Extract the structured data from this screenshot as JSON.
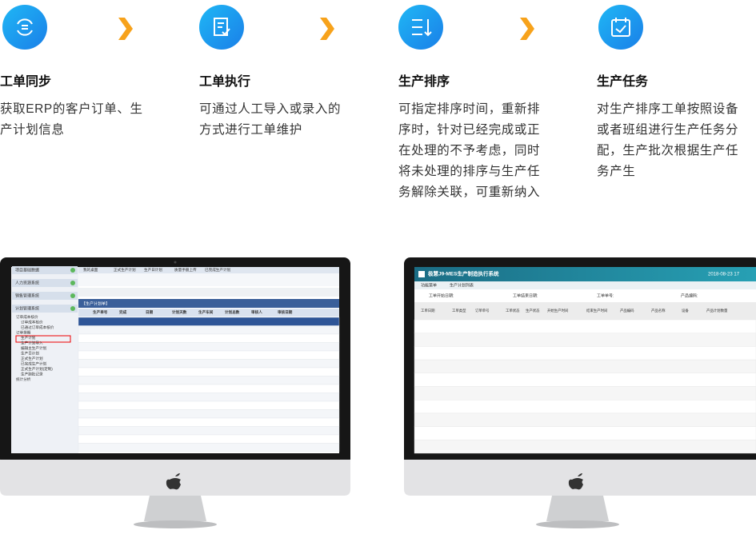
{
  "steps": [
    {
      "title": "工单同步",
      "lines": [
        "获取ERP的客户订单、生",
        "产计划信息"
      ]
    },
    {
      "title": "工单执行",
      "lines": [
        "可通过人工导入或录入的",
        "方式进行工单维护"
      ]
    },
    {
      "title": "生产排序",
      "lines": [
        "可指定排序时间，重新排",
        "序时，针对已经完成或正",
        "在处理的不予考虑，同时",
        "将未处理的排序与生产任",
        "务解除关联，可重新纳入"
      ]
    },
    {
      "title": "生产任务",
      "lines": [
        "对生产排序工单按照设备",
        "或者班组进行生产任务分",
        "配，生产批次根据生产任",
        "务产生"
      ]
    }
  ],
  "left_screen": {
    "menu": [
      "项目基础数据",
      "人力资源系统",
      "销售管理系统",
      "计划管理系统"
    ],
    "tree": [
      "订单成本核价",
      "订单成本核价",
      "已通过订单成本核价",
      "订单排期",
      "生产计划",
      "生产计划导入",
      "编辑主生产计划",
      "生产日计划",
      "正式生产计划",
      "已完成生产计划",
      "正式生产计划(定制)",
      "生产跑批记录",
      "统计分析"
    ],
    "tabs": [
      "我的桌面",
      "正式生产计划",
      "生产日计划",
      "质量手册上传",
      "已完成生产计划"
    ],
    "table_title": "【生产计划单】",
    "columns": [
      "生产单号",
      "完成",
      "日期",
      "计划天数",
      "生产车间",
      "计划总数",
      "审核人",
      "审核日期"
    ]
  },
  "right_screen": {
    "title": "极慧J9-MES生产制造执行系统",
    "datetime": "2018-08-23 17",
    "tabs": [
      "功能菜单",
      "生产计划列表"
    ],
    "filters": [
      "工单开始日期:",
      "工单结束日期:",
      "工单单号:",
      "产品编码:"
    ],
    "columns": [
      "工单日期",
      "工单类型",
      "订单单号",
      "工单状态",
      "生产状态",
      "开始生产时间",
      "结束生产时间",
      "产品编码",
      "产品名称",
      "设备",
      "产品计划数量"
    ]
  }
}
